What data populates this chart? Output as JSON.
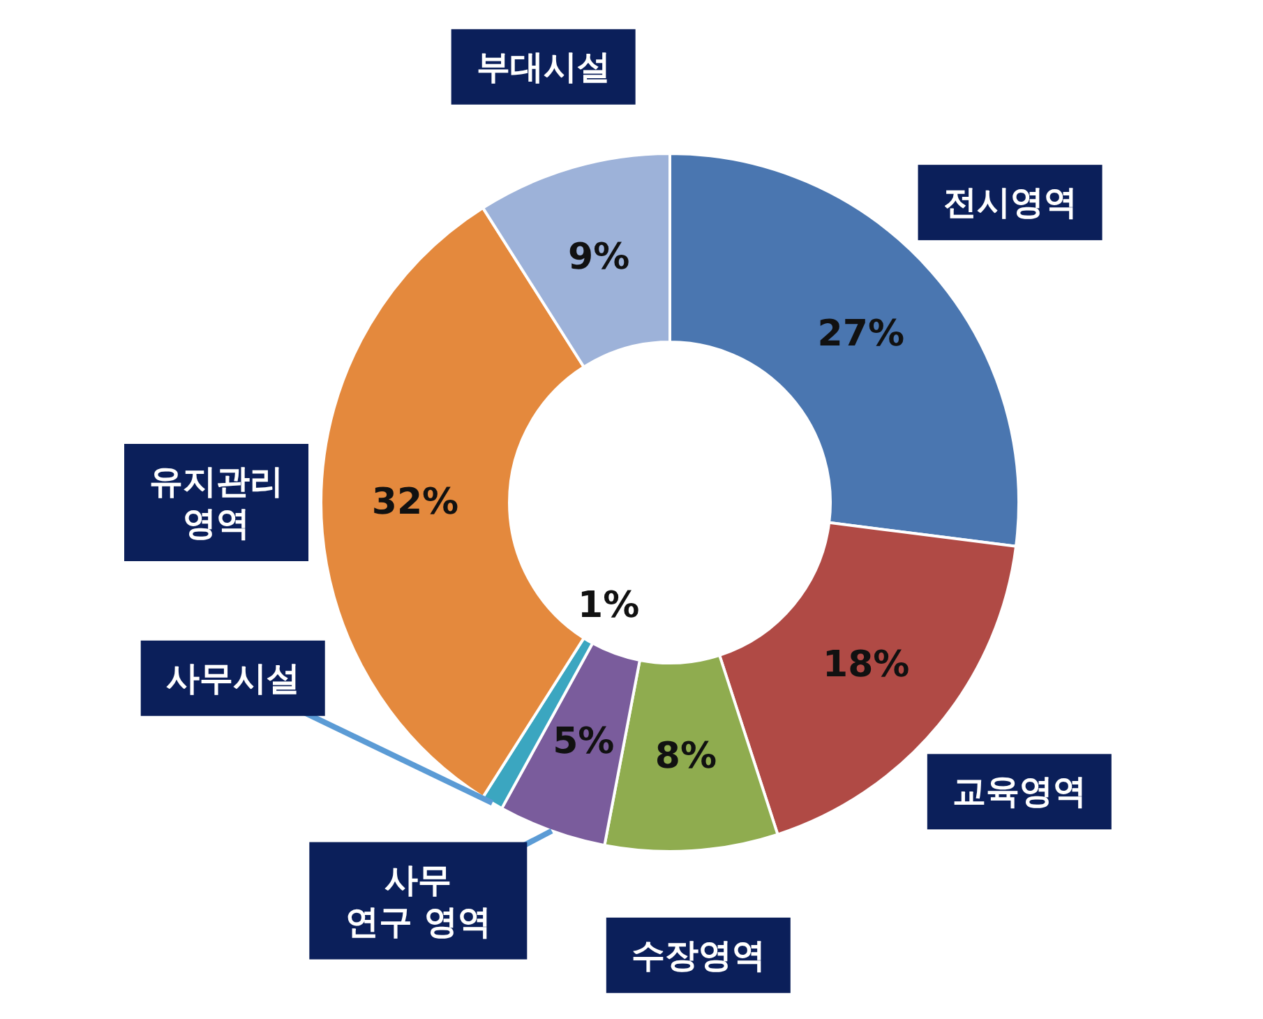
{
  "chart_data": {
    "type": "donut",
    "categories": [
      "전시영역",
      "교육영역",
      "수장영역",
      "사무 연구 영역",
      "사무시설",
      "유지관리 영역",
      "부대시설"
    ],
    "values": [
      27,
      18,
      8,
      5,
      1,
      32,
      9
    ],
    "colors": [
      "#4a76b0",
      "#b04a45",
      "#8fac4f",
      "#7a5c9c",
      "#3ba6c0",
      "#e4893d",
      "#9db2d9"
    ],
    "value_labels": [
      "27%",
      "18%",
      "8%",
      "5%",
      "1%",
      "32%",
      "9%"
    ]
  }
}
